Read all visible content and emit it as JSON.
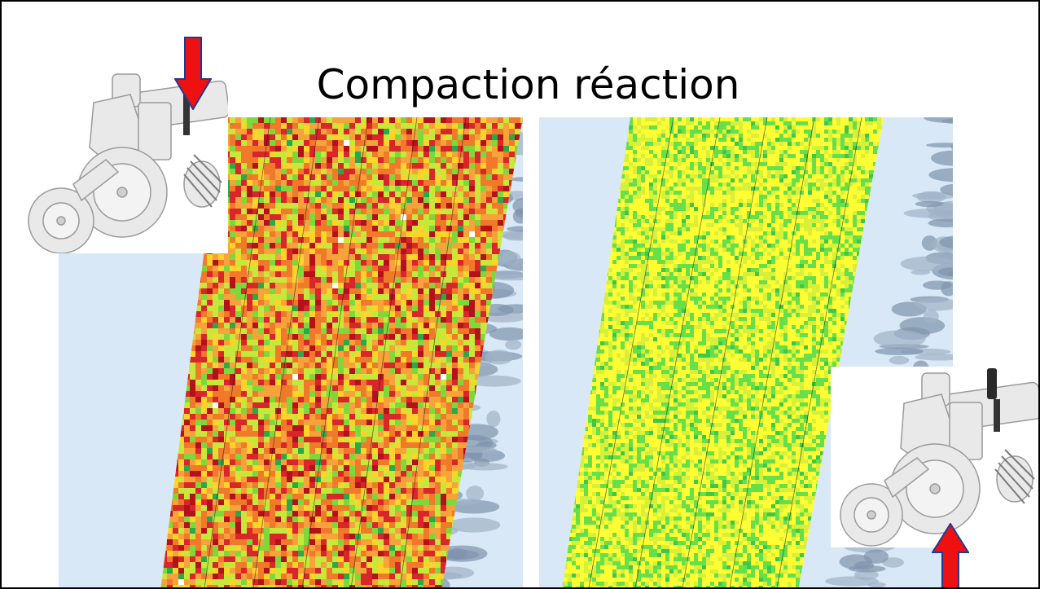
{
  "slide": {
    "title": "Compaction réaction"
  },
  "maps": [
    {
      "id": "left",
      "description_icon": "field-map-icon",
      "palette": [
        "#b3121b",
        "#d9262b",
        "#f07a2a",
        "#f7a23a",
        "#ffd42a",
        "#c7e83a",
        "#7fd83a",
        "#2aa84a",
        "#ffffff"
      ]
    },
    {
      "id": "right",
      "description_icon": "field-map-icon",
      "palette": [
        "#ffff33",
        "#d8f03a",
        "#66e04a",
        "#3ec84a",
        "#ff9a3a",
        "#e8403a",
        "#2a7ad8",
        "#ffffff"
      ]
    }
  ],
  "icons": {
    "planter": "planter-row-unit-icon",
    "arrow_down": "red-arrow-down-icon",
    "arrow_up": "red-arrow-up-icon"
  },
  "colors": {
    "arrow_fill": "#ee1111",
    "arrow_stroke": "#1f3a93",
    "background_sky": "#d8e8f6"
  }
}
